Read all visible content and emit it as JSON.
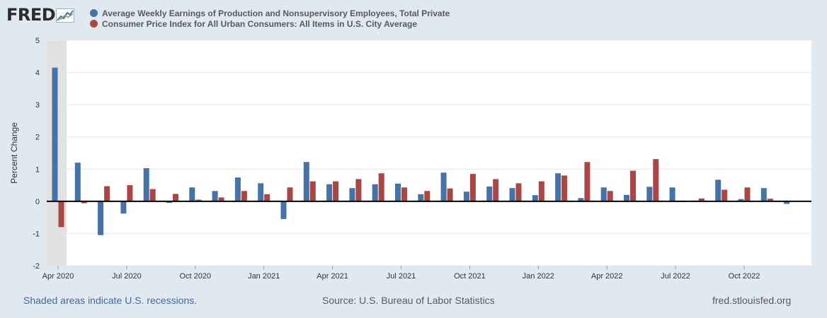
{
  "logo": {
    "text": "FRED",
    "icon": "trend-graph-icon"
  },
  "chart_data": {
    "type": "bar",
    "ylabel": "Percent Change",
    "ylim": [
      -2,
      5
    ],
    "yticks": [
      -2,
      -1,
      0,
      1,
      2,
      3,
      4,
      5
    ],
    "x_tick_labels": [
      "Apr 2020",
      "Jul 2020",
      "Oct 2020",
      "Jan 2021",
      "Apr 2021",
      "Jul 2021",
      "Oct 2021",
      "Jan 2022",
      "Apr 2022",
      "Jul 2022",
      "Oct 2022"
    ],
    "categories": [
      "Apr 2020",
      "May 2020",
      "Jun 2020",
      "Jul 2020",
      "Aug 2020",
      "Sep 2020",
      "Oct 2020",
      "Nov 2020",
      "Dec 2020",
      "Jan 2021",
      "Feb 2021",
      "Mar 2021",
      "Apr 2021",
      "May 2021",
      "Jun 2021",
      "Jul 2021",
      "Aug 2021",
      "Sep 2021",
      "Oct 2021",
      "Nov 2021",
      "Dec 2021",
      "Jan 2022",
      "Feb 2022",
      "Mar 2022",
      "Apr 2022",
      "May 2022",
      "Jun 2022",
      "Jul 2022",
      "Aug 2022",
      "Sep 2022",
      "Oct 2022",
      "Nov 2022",
      "Dec 2022"
    ],
    "recession_shading": {
      "from": "Apr 2020",
      "to": "Apr 2020"
    },
    "grid": true,
    "legend_position": "top",
    "series": [
      {
        "name": "Average Weekly Earnings of Production and Nonsupervisory Employees, Total Private",
        "color": "#4572a7",
        "values": [
          4.15,
          1.2,
          -1.05,
          -0.38,
          1.03,
          -0.05,
          0.43,
          0.32,
          0.74,
          0.56,
          -0.55,
          1.22,
          0.53,
          0.41,
          0.53,
          0.55,
          0.22,
          0.89,
          0.3,
          0.46,
          0.41,
          0.19,
          0.87,
          0.1,
          0.43,
          0.2,
          0.45,
          0.43,
          0.02,
          0.67,
          0.07,
          0.41,
          -0.08
        ]
      },
      {
        "name": "Consumer Price Index for All Urban Consumers: All Items in U.S. City Average",
        "color": "#aa4643",
        "values": [
          -0.8,
          -0.06,
          0.47,
          0.5,
          0.38,
          0.23,
          0.05,
          0.12,
          0.32,
          0.22,
          0.43,
          0.62,
          0.62,
          0.69,
          0.87,
          0.43,
          0.32,
          0.4,
          0.85,
          0.69,
          0.56,
          0.62,
          0.8,
          1.22,
          0.32,
          0.95,
          1.31,
          -0.02,
          0.09,
          0.36,
          0.43,
          0.08,
          null
        ]
      }
    ]
  },
  "footer": {
    "recession_note": "Shaded areas indicate U.S. recessions.",
    "source": "Source: U.S. Bureau of Labor Statistics",
    "site": "fred.stlouisfed.org"
  }
}
